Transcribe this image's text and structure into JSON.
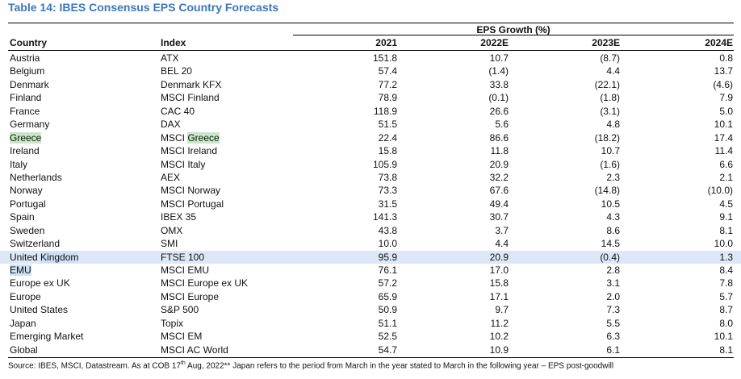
{
  "title": "Table 14: IBES Consensus EPS Country Forecasts",
  "group_header": "EPS Growth (%)",
  "headers": {
    "country": "Country",
    "index": "Index",
    "y2021": "2021",
    "y2022": "2022E",
    "y2023": "2023E",
    "y2024": "2024E"
  },
  "rows": [
    {
      "country": "Austria",
      "index": "ATX",
      "v2021": "151.8",
      "v2022": "10.7",
      "v2023": "(8.7)",
      "v2024": "0.8"
    },
    {
      "country": "Belgium",
      "index": "BEL 20",
      "v2021": "57.4",
      "v2022": "(1.4)",
      "v2023": "4.4",
      "v2024": "13.7"
    },
    {
      "country": "Denmark",
      "index": "Denmark KFX",
      "v2021": "77.2",
      "v2022": "33.8",
      "v2023": "(22.1)",
      "v2024": "(4.6)"
    },
    {
      "country": "Finland",
      "index": "MSCI Finland",
      "v2021": "78.9",
      "v2022": "(0.1)",
      "v2023": "(1.8)",
      "v2024": "7.9"
    },
    {
      "country": "France",
      "index": "CAC 40",
      "v2021": "118.9",
      "v2022": "26.6",
      "v2023": "(3.1)",
      "v2024": "5.0"
    },
    {
      "country": "Germany",
      "index": "DAX",
      "v2021": "51.5",
      "v2022": "5.6",
      "v2023": "4.8",
      "v2024": "10.1"
    },
    {
      "country": "Greece",
      "index": "MSCI Greece",
      "v2021": "22.4",
      "v2022": "86.6",
      "v2023": "(18.2)",
      "v2024": "17.4"
    },
    {
      "country": "Ireland",
      "index": "MSCI Ireland",
      "v2021": "15.8",
      "v2022": "11.8",
      "v2023": "10.7",
      "v2024": "11.4"
    },
    {
      "country": "Italy",
      "index": "MSCI Italy",
      "v2021": "105.9",
      "v2022": "20.9",
      "v2023": "(1.6)",
      "v2024": "6.6"
    },
    {
      "country": "Netherlands",
      "index": "AEX",
      "v2021": "73.8",
      "v2022": "32.2",
      "v2023": "2.3",
      "v2024": "2.1"
    },
    {
      "country": "Norway",
      "index": "MSCI Norway",
      "v2021": "73.3",
      "v2022": "67.6",
      "v2023": "(14.8)",
      "v2024": "(10.0)"
    },
    {
      "country": "Portugal",
      "index": "MSCI Portugal",
      "v2021": "31.5",
      "v2022": "49.4",
      "v2023": "10.5",
      "v2024": "4.5"
    },
    {
      "country": "Spain",
      "index": "IBEX 35",
      "v2021": "141.3",
      "v2022": "30.7",
      "v2023": "4.3",
      "v2024": "9.1"
    },
    {
      "country": "Sweden",
      "index": "OMX",
      "v2021": "43.8",
      "v2022": "3.7",
      "v2023": "8.6",
      "v2024": "8.1"
    },
    {
      "country": "Switzerland",
      "index": "SMI",
      "v2021": "10.0",
      "v2022": "4.4",
      "v2023": "14.5",
      "v2024": "10.0"
    },
    {
      "country": "United Kingdom",
      "index": "FTSE 100",
      "v2021": "95.9",
      "v2022": "20.9",
      "v2023": "(0.4)",
      "v2024": "1.3"
    },
    {
      "country": "EMU",
      "index": "MSCI EMU",
      "v2021": "76.1",
      "v2022": "17.0",
      "v2023": "2.8",
      "v2024": "8.4"
    },
    {
      "country": "Europe ex UK",
      "index": "MSCI Europe ex UK",
      "v2021": "57.2",
      "v2022": "15.8",
      "v2023": "3.1",
      "v2024": "7.8"
    },
    {
      "country": "Europe",
      "index": "MSCI Europe",
      "v2021": "65.9",
      "v2022": "17.1",
      "v2023": "2.0",
      "v2024": "5.7"
    },
    {
      "country": "United States",
      "index": "S&P 500",
      "v2021": "50.9",
      "v2022": "9.7",
      "v2023": "7.3",
      "v2024": "8.7"
    },
    {
      "country": "Japan",
      "index": "Topix",
      "v2021": "51.1",
      "v2022": "11.2",
      "v2023": "5.5",
      "v2024": "8.0"
    },
    {
      "country": "Emerging Market",
      "index": "MSCI EM",
      "v2021": "52.5",
      "v2022": "10.2",
      "v2023": "6.3",
      "v2024": "10.1"
    },
    {
      "country": "Global",
      "index": "MSCI AC World",
      "v2021": "54.7",
      "v2022": "10.9",
      "v2023": "6.1",
      "v2024": "8.1"
    }
  ],
  "source_note": {
    "before": "Source: IBES, MSCI, Datastream. As at COB 17",
    "sup": "th",
    "after": " Aug, 2022** Japan refers to the period from March in the year stated to March in the following year – EPS post-goodwill"
  }
}
